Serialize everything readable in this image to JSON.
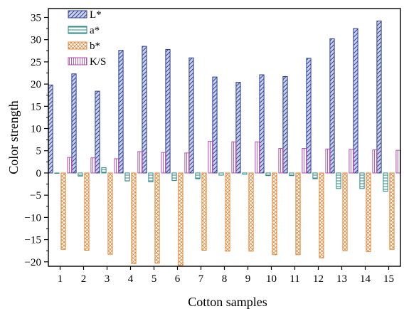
{
  "chart_data": {
    "type": "bar",
    "title": "",
    "xlabel": "Cotton samples",
    "ylabel": "Color strength",
    "categories": [
      "1",
      "2",
      "3",
      "4",
      "5",
      "6",
      "7",
      "8",
      "9",
      "10",
      "11",
      "12",
      "13",
      "14",
      "15"
    ],
    "ylim": [
      -21,
      37
    ],
    "yticks": [
      35,
      30,
      25,
      20,
      15,
      10,
      5,
      0,
      -5,
      -10,
      -15,
      -20
    ],
    "grid": false,
    "legend_position": "top-left",
    "series": [
      {
        "name": "L*",
        "color": "#2e3f8f",
        "pattern": "diagonal-hatch",
        "values": [
          19.8,
          22.3,
          18.4,
          27.6,
          28.5,
          27.8,
          25.9,
          21.6,
          20.4,
          22.1,
          21.7,
          25.8,
          30.2,
          32.5,
          34.2
        ]
      },
      {
        "name": "a*",
        "color": "#2a8a86",
        "pattern": "horizontal-lines",
        "values": [
          0.0,
          -0.7,
          1.2,
          -1.8,
          -2.0,
          -1.7,
          -1.3,
          -0.5,
          -0.3,
          -0.6,
          -0.6,
          -1.3,
          -3.5,
          -3.5,
          -4.1
        ]
      },
      {
        "name": "b*",
        "color": "#e08a3c",
        "pattern": "cross-hatch",
        "values": [
          -17.2,
          -17.4,
          -18.3,
          -20.4,
          -20.3,
          -20.8,
          -17.4,
          -17.6,
          -17.6,
          -18.4,
          -18.4,
          -19.1,
          -17.5,
          -17.7,
          -17.2
        ]
      },
      {
        "name": "K/S",
        "color": "#b04cb0",
        "pattern": "vertical-lines",
        "values": [
          3.5,
          3.4,
          3.2,
          4.8,
          4.6,
          4.5,
          7.1,
          7.0,
          7.0,
          5.5,
          5.5,
          5.4,
          5.3,
          5.2,
          5.1
        ]
      }
    ]
  }
}
